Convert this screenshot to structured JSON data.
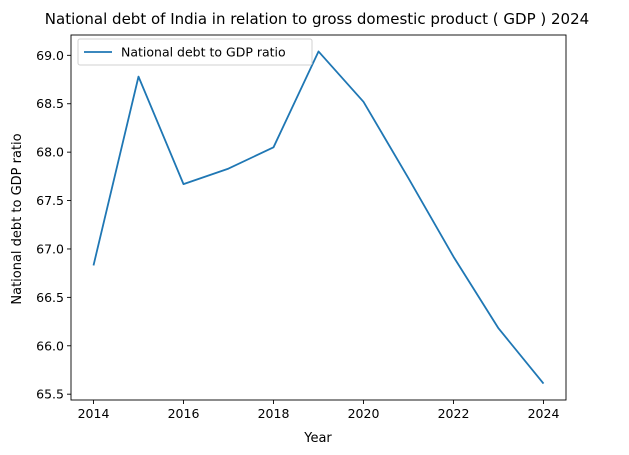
{
  "chart_data": {
    "type": "line",
    "title": "National debt of India in relation to gross domestic product ( GDP ) 2024",
    "xlabel": "Year",
    "ylabel": "National debt to GDP ratio",
    "x": [
      2014,
      2015,
      2016,
      2017,
      2018,
      2019,
      2020,
      2021,
      2022,
      2023,
      2024
    ],
    "series": [
      {
        "name": "National debt to GDP ratio",
        "values": [
          66.83,
          68.78,
          67.67,
          67.83,
          68.05,
          69.04,
          68.52,
          67.73,
          66.92,
          66.18,
          65.61
        ],
        "color": "#1f77b4"
      }
    ],
    "xlim": [
      2013.5,
      2024.5
    ],
    "ylim": [
      65.44,
      69.21
    ],
    "x_ticks": [
      "2014",
      "2016",
      "2018",
      "2020",
      "2022",
      "2024"
    ],
    "y_ticks": [
      "65.5",
      "66.0",
      "66.5",
      "67.0",
      "67.5",
      "68.0",
      "68.5",
      "69.0"
    ],
    "legend": "top-left",
    "grid": false
  }
}
